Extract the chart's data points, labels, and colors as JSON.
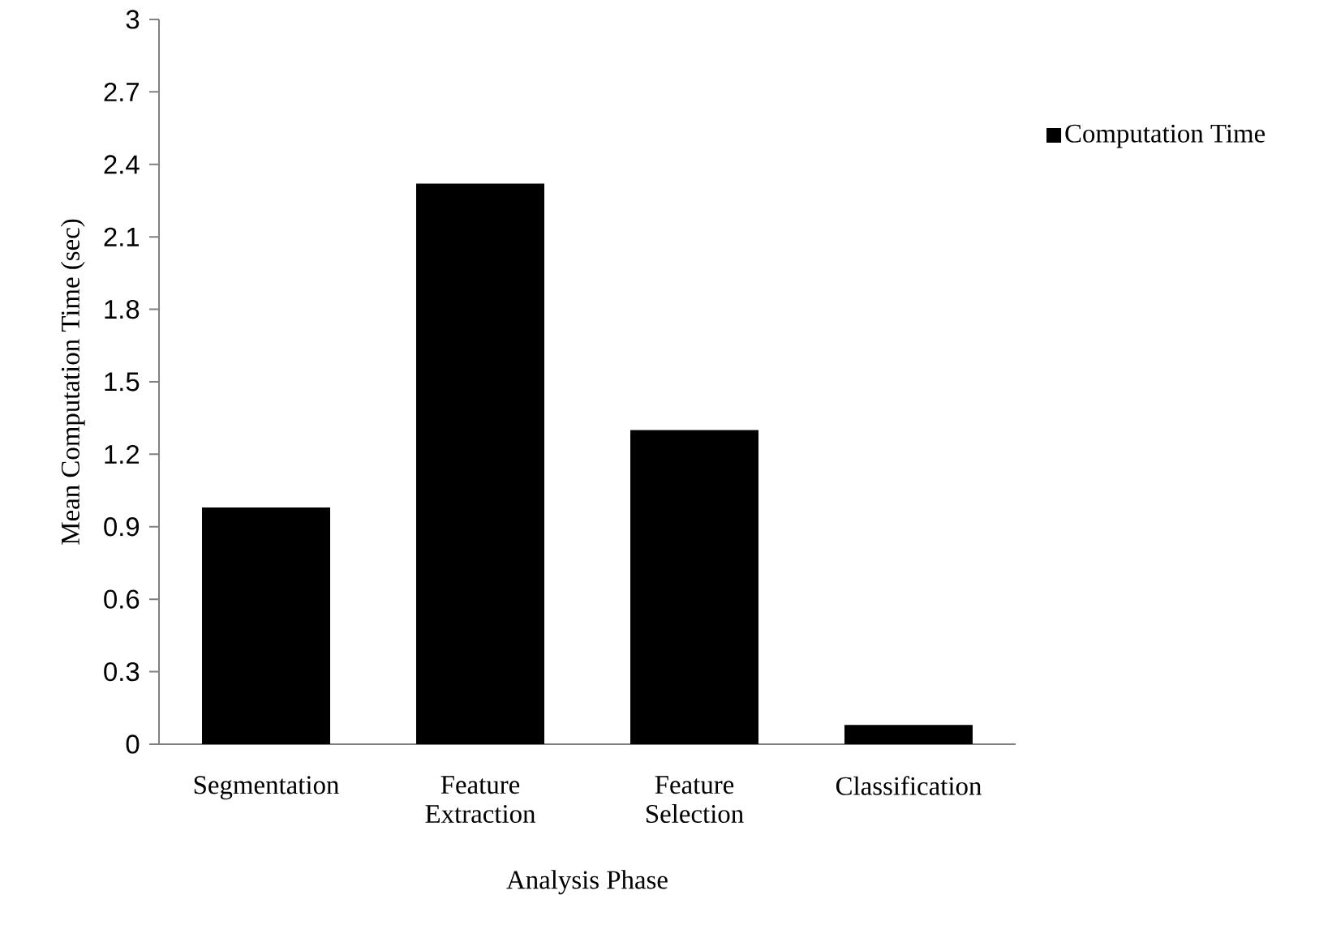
{
  "chart_data": {
    "type": "bar",
    "xlabel": "Analysis Phase",
    "ylabel": "Mean Computation Time (sec)",
    "categories": [
      "Segmentation",
      "Feature Extraction",
      "Feature Selection",
      "Classification"
    ],
    "series": [
      {
        "name": "Computation Time",
        "color": "#000000",
        "values": [
          0.98,
          2.32,
          1.3,
          0.08
        ]
      }
    ],
    "ylim": [
      0,
      3
    ],
    "yticks": [
      0,
      0.3,
      0.6,
      0.9,
      1.2,
      1.5,
      1.8,
      2.1,
      2.4,
      2.7,
      3
    ],
    "grid": false,
    "legend": "right"
  }
}
